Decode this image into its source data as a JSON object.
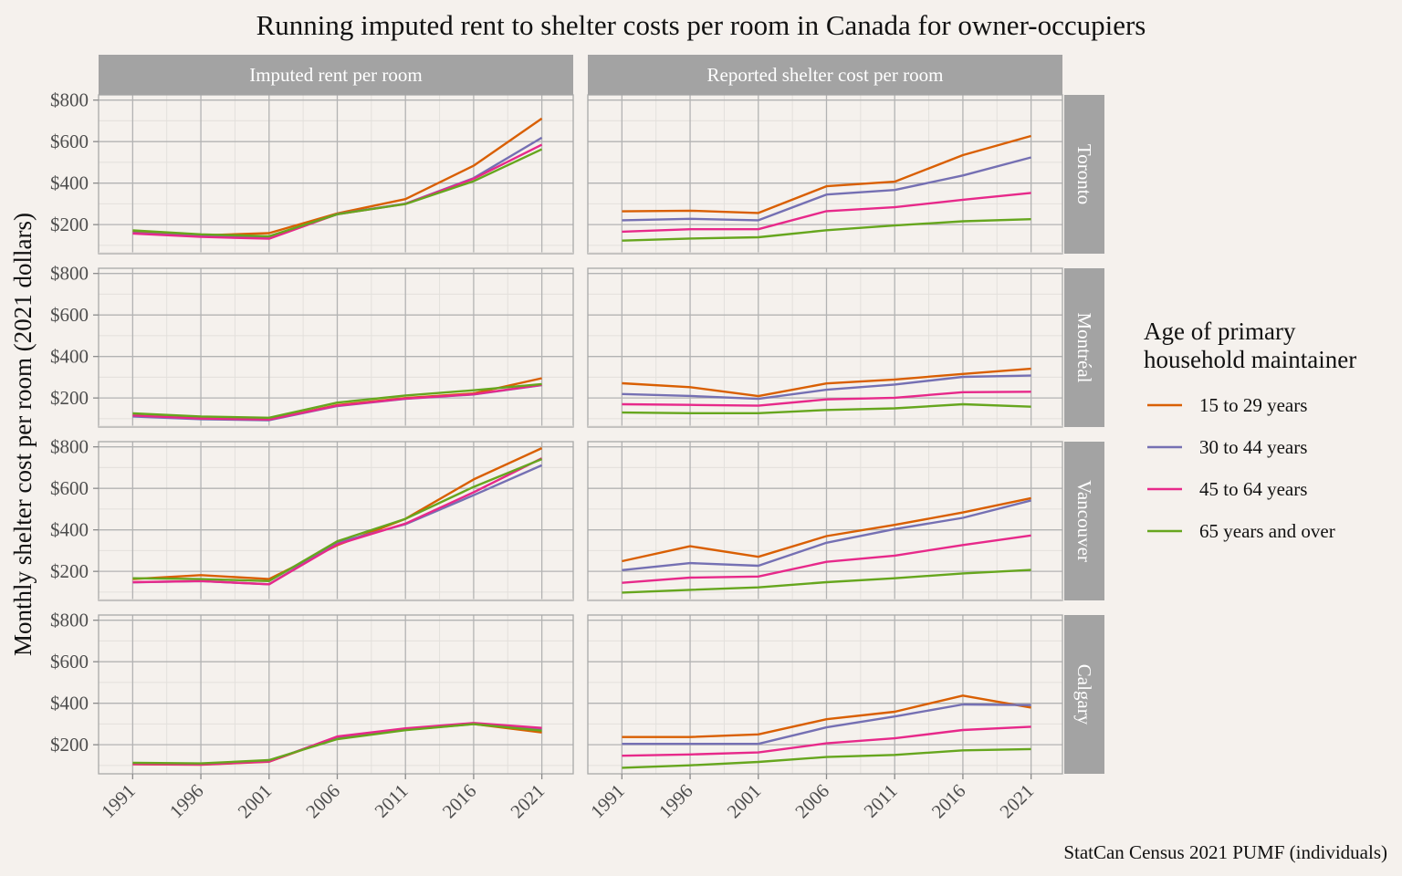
{
  "chart_data": {
    "type": "line",
    "title": "Running imputed rent to shelter costs per room in Canada for owner-occupiers",
    "xlabel": "",
    "ylabel": "Monthly shelter cost per room (2021 dollars)",
    "caption": "StatCan Census 2021 PUMF (individuals)",
    "x": [
      1991,
      1996,
      2001,
      2006,
      2011,
      2016,
      2021
    ],
    "x_tick_labels": [
      "1991",
      "1996",
      "2001",
      "2006",
      "2011",
      "2016",
      "2021"
    ],
    "ylim": [
      60,
      825
    ],
    "y_ticks": [
      200,
      400,
      600,
      800
    ],
    "y_tick_labels": [
      "$200",
      "$400",
      "$600",
      "$800"
    ],
    "grid": true,
    "facet_columns": [
      "Imputed rent per room",
      "Reported shelter cost per room"
    ],
    "facet_rows": [
      "Toronto",
      "Montréal",
      "Vancouver",
      "Calgary"
    ],
    "legend": {
      "title_lines": [
        "Age of primary",
        "household maintainer"
      ],
      "placement": "right",
      "entries": [
        {
          "name": "15 to 29 years",
          "color": "#d95f02"
        },
        {
          "name": "30 to 44 years",
          "color": "#7570b3"
        },
        {
          "name": "45 to 64 years",
          "color": "#e7298a"
        },
        {
          "name": "65 years and over",
          "color": "#66a61e"
        }
      ]
    },
    "panels": [
      {
        "row": "Toronto",
        "column": "Imputed rent per room",
        "series": [
          {
            "name": "15 to 29 years",
            "values": [
              165,
              148,
              159,
              254,
              323,
              484,
              711
            ]
          },
          {
            "name": "30 to 44 years",
            "values": [
              160,
              143,
              140,
              251,
              301,
              424,
              619
            ]
          },
          {
            "name": "45 to 64 years",
            "values": [
              157,
              141,
              132,
              250,
              300,
              421,
              585
            ]
          },
          {
            "name": "65 years and over",
            "values": [
              172,
              153,
              144,
              250,
              299,
              409,
              563
            ]
          }
        ]
      },
      {
        "row": "Toronto",
        "column": "Reported shelter cost per room",
        "series": [
          {
            "name": "15 to 29 years",
            "values": [
              264,
              267,
              256,
              385,
              407,
              535,
              627
            ]
          },
          {
            "name": "30 to 44 years",
            "values": [
              221,
              228,
              221,
              345,
              367,
              437,
              524
            ]
          },
          {
            "name": "45 to 64 years",
            "values": [
              166,
              178,
              178,
              265,
              284,
              320,
              353
            ]
          },
          {
            "name": "65 years and over",
            "values": [
              123,
              133,
              139,
              173,
              196,
              216,
              226
            ]
          }
        ]
      },
      {
        "row": "Montréal",
        "column": "Imputed rent per room",
        "series": [
          {
            "name": "15 to 29 years",
            "values": [
              116,
              101,
              96,
              166,
              200,
              222,
              295
            ]
          },
          {
            "name": "30 to 44 years",
            "values": [
              111,
              98,
              93,
              161,
              196,
              217,
              262
            ]
          },
          {
            "name": "45 to 64 years",
            "values": [
              116,
              101,
              96,
              163,
              197,
              218,
              263
            ]
          },
          {
            "name": "65 years and over",
            "values": [
              126,
              111,
              105,
              178,
              212,
              237,
              267
            ]
          }
        ]
      },
      {
        "row": "Montréal",
        "column": "Reported shelter cost per room",
        "series": [
          {
            "name": "15 to 29 years",
            "values": [
              271,
              252,
              209,
              270,
              289,
              316,
              341
            ]
          },
          {
            "name": "30 to 44 years",
            "values": [
              219,
              210,
              196,
              240,
              265,
              302,
              308
            ]
          },
          {
            "name": "45 to 64 years",
            "values": [
              170,
              167,
              163,
              193,
              201,
              228,
              230
            ]
          },
          {
            "name": "65 years and over",
            "values": [
              130,
              127,
              127,
              142,
              150,
              170,
              158
            ]
          }
        ]
      },
      {
        "row": "Vancouver",
        "column": "Imputed rent per room",
        "series": [
          {
            "name": "15 to 29 years",
            "values": [
              163,
              182,
              163,
              326,
              453,
              643,
              794
            ]
          },
          {
            "name": "30 to 44 years",
            "values": [
              147,
              153,
              138,
              338,
              427,
              567,
              711
            ]
          },
          {
            "name": "45 to 64 years",
            "values": [
              148,
              153,
              138,
              330,
              430,
              581,
              745
            ]
          },
          {
            "name": "65 years and over",
            "values": [
              167,
              163,
              153,
              345,
              453,
              607,
              741
            ]
          }
        ]
      },
      {
        "row": "Vancouver",
        "column": "Reported shelter cost per room",
        "series": [
          {
            "name": "15 to 29 years",
            "values": [
              249,
              321,
              270,
              370,
              424,
              484,
              553
            ]
          },
          {
            "name": "30 to 44 years",
            "values": [
              206,
              240,
              227,
              338,
              404,
              458,
              542
            ]
          },
          {
            "name": "45 to 64 years",
            "values": [
              145,
              170,
              175,
              246,
              276,
              327,
              373
            ]
          },
          {
            "name": "65 years and over",
            "values": [
              98,
              111,
              123,
              148,
              167,
              190,
              207
            ]
          }
        ]
      },
      {
        "row": "Calgary",
        "column": "Imputed rent per room",
        "series": [
          {
            "name": "15 to 29 years",
            "values": [
              106,
              104,
              118,
              236,
              272,
              300,
              259
            ]
          },
          {
            "name": "30 to 44 years",
            "values": [
              108,
              106,
              120,
              238,
              277,
              303,
              275
            ]
          },
          {
            "name": "45 to 64 years",
            "values": [
              107,
              105,
              119,
              240,
              279,
              305,
              281
            ]
          },
          {
            "name": "65 years and over",
            "values": [
              113,
              110,
              126,
              227,
              270,
              299,
              268
            ]
          }
        ]
      },
      {
        "row": "Calgary",
        "column": "Reported shelter cost per room",
        "series": [
          {
            "name": "15 to 29 years",
            "values": [
              237,
              237,
              250,
              323,
              359,
              437,
              379
            ]
          },
          {
            "name": "30 to 44 years",
            "values": [
              204,
              204,
              204,
              284,
              336,
              394,
              391
            ]
          },
          {
            "name": "45 to 64 years",
            "values": [
              147,
              153,
              163,
              207,
              231,
              271,
              287
            ]
          },
          {
            "name": "65 years and over",
            "values": [
              89,
              101,
              117,
              141,
              151,
              173,
              179
            ]
          }
        ]
      }
    ]
  },
  "colors": {
    "background": "#f5f1ed",
    "strip_fill": "#a3a3a3",
    "grid_major": "#b3b3b3",
    "grid_minor": "#e3e0dc",
    "panel_border": "#a8a8a8"
  }
}
